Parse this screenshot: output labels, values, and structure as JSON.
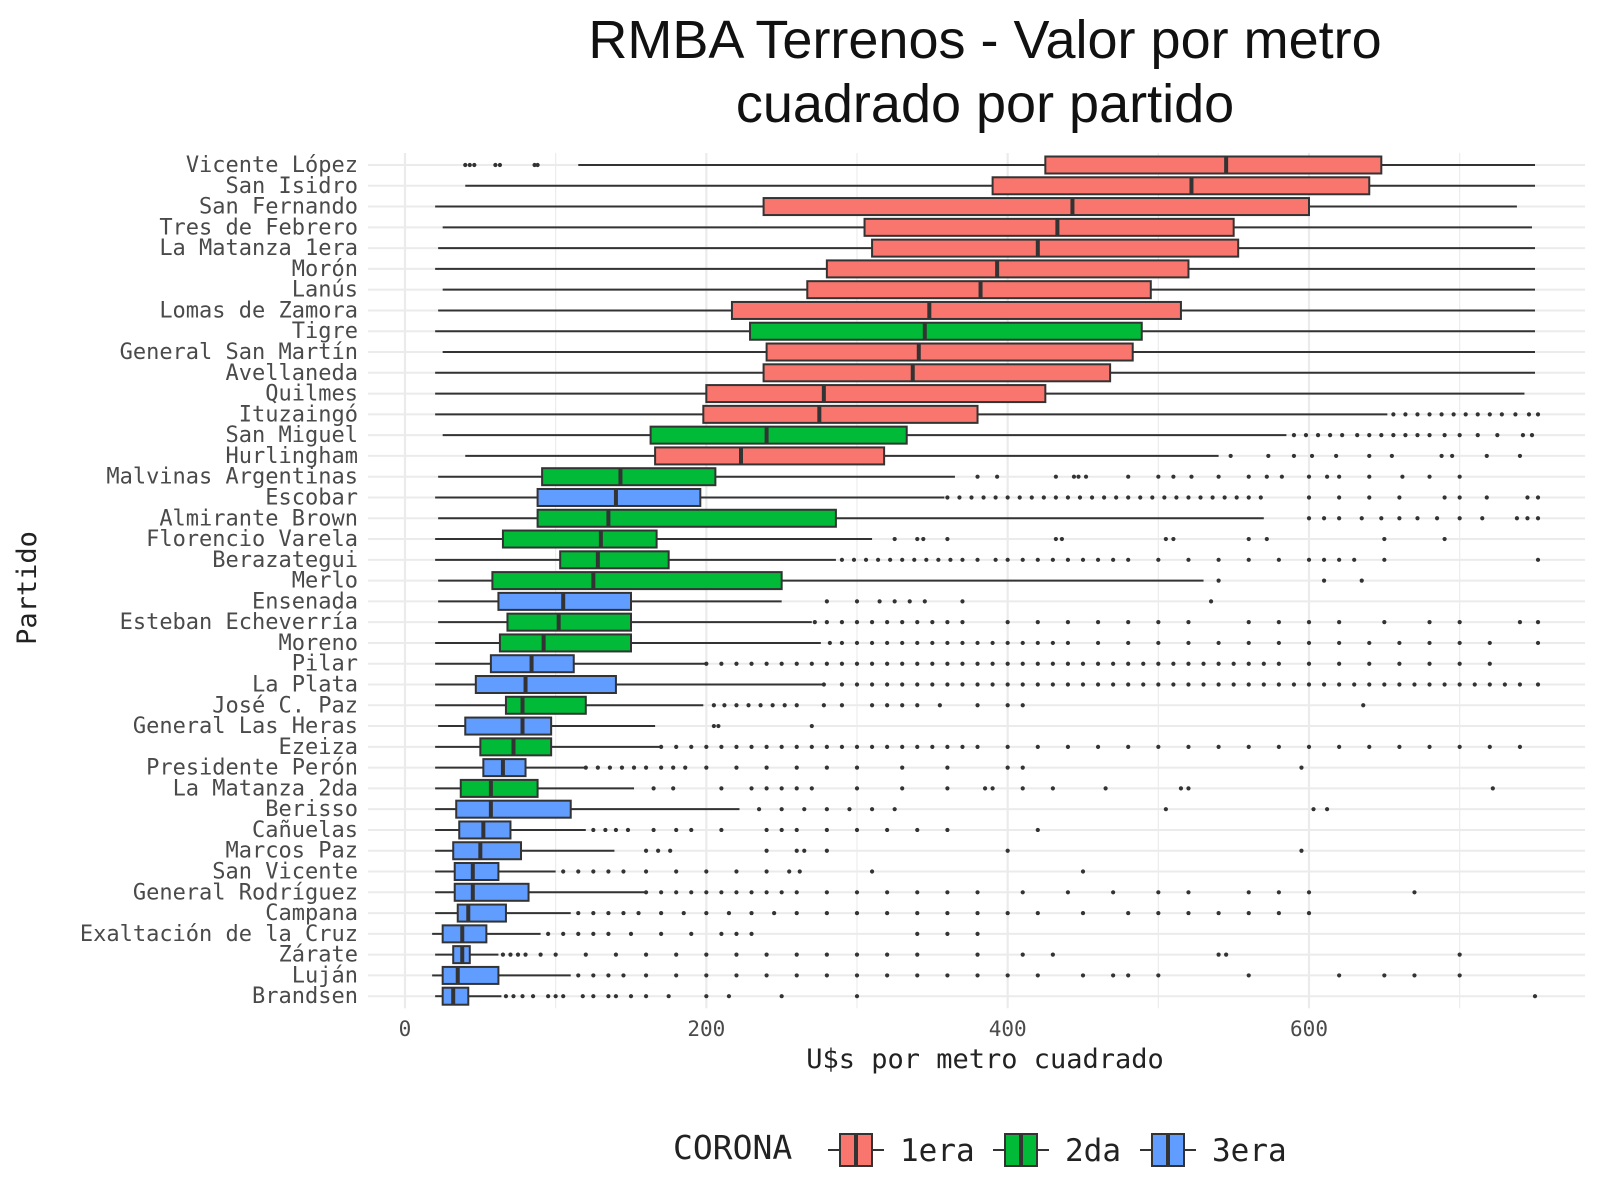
{
  "chart_data": {
    "type": "boxplot",
    "title_lines": [
      "RMBA Terrenos - Valor por metro",
      "cuadrado por partido"
    ],
    "xlabel": "U$s por metro cuadrado",
    "ylabel": "Partido",
    "xlim": [
      0,
      780
    ],
    "x_ticks": [
      0,
      200,
      400,
      600
    ],
    "grid": true,
    "orientation": "horizontal",
    "legend": {
      "title": "CORONA",
      "position": "bottom",
      "items": [
        {
          "label": "1era",
          "color": "#F8766D"
        },
        {
          "label": "2da",
          "color": "#00BA38"
        },
        {
          "label": "3era",
          "color": "#619CFF"
        }
      ]
    },
    "series": [
      {
        "name": "Vicente López",
        "corona": "1era",
        "whisker_low": 115,
        "q1": 425,
        "median": 545,
        "q3": 648,
        "whisker_high": 750,
        "outliers": [
          40,
          43,
          46,
          60,
          63,
          86,
          88
        ]
      },
      {
        "name": "San Isidro",
        "corona": "1era",
        "whisker_low": 40,
        "q1": 390,
        "median": 522,
        "q3": 640,
        "whisker_high": 750,
        "outliers": []
      },
      {
        "name": "San Fernando",
        "corona": "1era",
        "whisker_low": 20,
        "q1": 238,
        "median": 443,
        "q3": 600,
        "whisker_high": 738,
        "outliers": []
      },
      {
        "name": "Tres de Febrero",
        "corona": "1era",
        "whisker_low": 25,
        "q1": 305,
        "median": 433,
        "q3": 550,
        "whisker_high": 748,
        "outliers": []
      },
      {
        "name": "La Matanza 1era",
        "corona": "1era",
        "whisker_low": 22,
        "q1": 310,
        "median": 420,
        "q3": 553,
        "whisker_high": 750,
        "outliers": []
      },
      {
        "name": "Morón",
        "corona": "1era",
        "whisker_low": 20,
        "q1": 280,
        "median": 393,
        "q3": 520,
        "whisker_high": 750,
        "outliers": []
      },
      {
        "name": "Lanús",
        "corona": "1era",
        "whisker_low": 25,
        "q1": 267,
        "median": 382,
        "q3": 495,
        "whisker_high": 750,
        "outliers": []
      },
      {
        "name": "Lomas de Zamora",
        "corona": "1era",
        "whisker_low": 22,
        "q1": 217,
        "median": 348,
        "q3": 515,
        "whisker_high": 750,
        "outliers": []
      },
      {
        "name": "Tigre",
        "corona": "2da",
        "whisker_low": 20,
        "q1": 229,
        "median": 345,
        "q3": 489,
        "whisker_high": 750,
        "outliers": []
      },
      {
        "name": "General San Martín",
        "corona": "1era",
        "whisker_low": 25,
        "q1": 240,
        "median": 341,
        "q3": 483,
        "whisker_high": 750,
        "outliers": []
      },
      {
        "name": "Avellaneda",
        "corona": "1era",
        "whisker_low": 20,
        "q1": 238,
        "median": 337,
        "q3": 468,
        "whisker_high": 750,
        "outliers": []
      },
      {
        "name": "Quilmes",
        "corona": "1era",
        "whisker_low": 20,
        "q1": 200,
        "median": 278,
        "q3": 425,
        "whisker_high": 743,
        "outliers": []
      },
      {
        "name": "Ituzaingó",
        "corona": "1era",
        "whisker_low": 20,
        "q1": 198,
        "median": 275,
        "q3": 380,
        "whisker_high": 652,
        "outliers": [
          656,
          664,
          672,
          680,
          688,
          696,
          704,
          712,
          720,
          728,
          737,
          746,
          752
        ]
      },
      {
        "name": "San Miguel",
        "corona": "2da",
        "whisker_low": 25,
        "q1": 163,
        "median": 240,
        "q3": 333,
        "whisker_high": 585,
        "outliers": [
          590,
          598,
          606,
          614,
          622,
          632,
          640,
          648,
          656,
          664,
          672,
          680,
          690,
          700,
          712,
          725,
          742,
          748
        ]
      },
      {
        "name": "Hurlingham",
        "corona": "1era",
        "whisker_low": 40,
        "q1": 166,
        "median": 223,
        "q3": 318,
        "whisker_high": 540,
        "outliers": [
          548,
          573,
          590,
          602,
          618,
          640,
          655,
          688,
          695,
          718,
          740
        ]
      },
      {
        "name": "Malvinas Argentinas",
        "corona": "2da",
        "whisker_low": 22,
        "q1": 91,
        "median": 143,
        "q3": 206,
        "whisker_high": 365,
        "outliers": [
          380,
          393,
          432,
          444,
          447,
          452,
          480,
          500,
          510,
          522,
          540,
          560,
          572,
          582,
          600,
          612,
          620,
          640,
          662,
          680,
          700
        ]
      },
      {
        "name": "Escobar",
        "corona": "3era",
        "whisker_low": 20,
        "q1": 88,
        "median": 140,
        "q3": 196,
        "whisker_high": 358,
        "outliers": [
          360,
          368,
          376,
          384,
          392,
          400,
          408,
          416,
          424,
          432,
          440,
          448,
          456,
          464,
          472,
          480,
          488,
          496,
          504,
          512,
          520,
          528,
          536,
          544,
          552,
          560,
          568,
          600,
          620,
          640,
          660,
          690,
          700,
          718,
          745,
          752
        ]
      },
      {
        "name": "Almirante Brown",
        "corona": "2da",
        "whisker_low": 22,
        "q1": 88,
        "median": 135,
        "q3": 286,
        "whisker_high": 570,
        "outliers": [
          600,
          610,
          620,
          635,
          648,
          660,
          672,
          685,
          700,
          715,
          738,
          745,
          752
        ]
      },
      {
        "name": "Florencio Varela",
        "corona": "2da",
        "whisker_low": 20,
        "q1": 65,
        "median": 130,
        "q3": 167,
        "whisker_high": 310,
        "outliers": [
          325,
          340,
          344,
          360,
          432,
          436,
          505,
          510,
          560,
          572,
          650,
          690
        ]
      },
      {
        "name": "Berazategui",
        "corona": "2da",
        "whisker_low": 20,
        "q1": 103,
        "median": 128,
        "q3": 175,
        "whisker_high": 286,
        "outliers": [
          290,
          298,
          306,
          314,
          322,
          330,
          338,
          346,
          354,
          362,
          370,
          380,
          392,
          400,
          410,
          420,
          430,
          440,
          450,
          460,
          470,
          480,
          500,
          520,
          540,
          560,
          580,
          600,
          610,
          620,
          630,
          650,
          752
        ]
      },
      {
        "name": "Merlo",
        "corona": "2da",
        "whisker_low": 22,
        "q1": 58,
        "median": 125,
        "q3": 250,
        "whisker_high": 530,
        "outliers": [
          540,
          610,
          635
        ]
      },
      {
        "name": "Ensenada",
        "corona": "3era",
        "whisker_low": 22,
        "q1": 62,
        "median": 105,
        "q3": 150,
        "whisker_high": 250,
        "outliers": [
          280,
          300,
          315,
          325,
          335,
          345,
          370,
          535
        ]
      },
      {
        "name": "Esteban Echeverría",
        "corona": "2da",
        "whisker_low": 22,
        "q1": 68,
        "median": 102,
        "q3": 150,
        "whisker_high": 270,
        "outliers": [
          272,
          280,
          290,
          300,
          310,
          320,
          330,
          340,
          350,
          360,
          370,
          400,
          420,
          440,
          460,
          480,
          500,
          520,
          560,
          580,
          600,
          620,
          650,
          680,
          700,
          740,
          752
        ]
      },
      {
        "name": "Moreno",
        "corona": "2da",
        "whisker_low": 20,
        "q1": 63,
        "median": 92,
        "q3": 150,
        "whisker_high": 276,
        "outliers": [
          282,
          290,
          300,
          310,
          320,
          330,
          340,
          350,
          360,
          370,
          380,
          390,
          400,
          410,
          420,
          430,
          440,
          460,
          480,
          500,
          520,
          540,
          560,
          580,
          600,
          620,
          640,
          660,
          680,
          700,
          720,
          752
        ]
      },
      {
        "name": "Pilar",
        "corona": "3era",
        "whisker_low": 20,
        "q1": 57,
        "median": 84,
        "q3": 112,
        "whisker_high": 200,
        "outliers": [
          200,
          210,
          220,
          230,
          240,
          250,
          260,
          270,
          280,
          290,
          300,
          310,
          320,
          330,
          340,
          350,
          360,
          370,
          380,
          390,
          400,
          410,
          420,
          430,
          440,
          450,
          460,
          470,
          480,
          490,
          500,
          510,
          520,
          530,
          540,
          550,
          560,
          570,
          580,
          600,
          620,
          640,
          660,
          680,
          700,
          720
        ]
      },
      {
        "name": "La Plata",
        "corona": "3era",
        "whisker_low": 20,
        "q1": 47,
        "median": 80,
        "q3": 140,
        "whisker_high": 278,
        "outliers": [
          278,
          290,
          300,
          310,
          320,
          330,
          340,
          350,
          360,
          370,
          380,
          390,
          400,
          410,
          420,
          430,
          440,
          450,
          460,
          470,
          480,
          490,
          500,
          510,
          520,
          530,
          540,
          550,
          560,
          570,
          580,
          590,
          600,
          610,
          620,
          630,
          640,
          650,
          660,
          670,
          680,
          690,
          700,
          710,
          720,
          730,
          740,
          752
        ]
      },
      {
        "name": "José C. Paz",
        "corona": "2da",
        "whisker_low": 20,
        "q1": 67,
        "median": 78,
        "q3": 120,
        "whisker_high": 198,
        "outliers": [
          205,
          212,
          220,
          228,
          236,
          244,
          252,
          260,
          278,
          290,
          310,
          320,
          330,
          340,
          355,
          380,
          400,
          410,
          636
        ]
      },
      {
        "name": "General Las Heras",
        "corona": "3era",
        "whisker_low": 22,
        "q1": 40,
        "median": 78,
        "q3": 97,
        "whisker_high": 166,
        "outliers": [
          205,
          208,
          270
        ]
      },
      {
        "name": "Ezeiza",
        "corona": "2da",
        "whisker_low": 20,
        "q1": 50,
        "median": 72,
        "q3": 97,
        "whisker_high": 170,
        "outliers": [
          170,
          180,
          190,
          200,
          210,
          220,
          230,
          240,
          250,
          260,
          270,
          280,
          290,
          300,
          310,
          320,
          330,
          340,
          350,
          360,
          370,
          380,
          400,
          420,
          440,
          460,
          480,
          500,
          520,
          540,
          560,
          580,
          600,
          620,
          640,
          660,
          680,
          700,
          720,
          740
        ]
      },
      {
        "name": "Presidente Perón",
        "corona": "3era",
        "whisker_low": 20,
        "q1": 52,
        "median": 65,
        "q3": 80,
        "whisker_high": 120,
        "outliers": [
          120,
          128,
          136,
          144,
          152,
          160,
          170,
          178,
          186,
          200,
          220,
          240,
          260,
          280,
          300,
          330,
          360,
          400,
          410,
          595
        ]
      },
      {
        "name": "La Matanza 2da",
        "corona": "2da",
        "whisker_low": 20,
        "q1": 37,
        "median": 57,
        "q3": 88,
        "whisker_high": 152,
        "outliers": [
          165,
          178,
          210,
          230,
          240,
          250,
          260,
          270,
          300,
          330,
          360,
          385,
          390,
          410,
          430,
          465,
          515,
          520,
          722
        ]
      },
      {
        "name": "Berisso",
        "corona": "3era",
        "whisker_low": 20,
        "q1": 34,
        "median": 57,
        "q3": 110,
        "whisker_high": 222,
        "outliers": [
          235,
          250,
          265,
          280,
          295,
          310,
          325,
          505,
          603,
          612
        ]
      },
      {
        "name": "Cañuelas",
        "corona": "3era",
        "whisker_low": 20,
        "q1": 36,
        "median": 52,
        "q3": 70,
        "whisker_high": 120,
        "outliers": [
          125,
          133,
          140,
          148,
          165,
          180,
          190,
          210,
          240,
          250,
          260,
          280,
          300,
          320,
          340,
          360,
          420
        ]
      },
      {
        "name": "Marcos Paz",
        "corona": "3era",
        "whisker_low": 20,
        "q1": 32,
        "median": 50,
        "q3": 77,
        "whisker_high": 139,
        "outliers": [
          160,
          168,
          176,
          240,
          260,
          265,
          280,
          400,
          595
        ]
      },
      {
        "name": "San Vicente",
        "corona": "3era",
        "whisker_low": 20,
        "q1": 33,
        "median": 45,
        "q3": 62,
        "whisker_high": 100,
        "outliers": [
          105,
          115,
          125,
          135,
          145,
          160,
          180,
          200,
          220,
          240,
          255,
          262,
          310,
          450
        ]
      },
      {
        "name": "General Rodríguez",
        "corona": "3era",
        "whisker_low": 20,
        "q1": 33,
        "median": 45,
        "q3": 82,
        "whisker_high": 160,
        "outliers": [
          160,
          170,
          180,
          190,
          200,
          210,
          220,
          230,
          240,
          250,
          260,
          280,
          300,
          320,
          340,
          360,
          380,
          410,
          440,
          470,
          500,
          520,
          560,
          580,
          600,
          670
        ]
      },
      {
        "name": "Campana",
        "corona": "3era",
        "whisker_low": 20,
        "q1": 35,
        "median": 42,
        "q3": 67,
        "whisker_high": 110,
        "outliers": [
          115,
          125,
          135,
          145,
          155,
          170,
          185,
          200,
          215,
          230,
          245,
          260,
          280,
          300,
          320,
          340,
          360,
          380,
          400,
          420,
          450,
          480,
          500,
          520,
          540,
          560,
          580,
          600
        ]
      },
      {
        "name": "Exaltación de la Cruz",
        "corona": "3era",
        "whisker_low": 18,
        "q1": 25,
        "median": 38,
        "q3": 54,
        "whisker_high": 90,
        "outliers": [
          95,
          105,
          115,
          125,
          135,
          150,
          170,
          190,
          210,
          220,
          230,
          340,
          360,
          380
        ]
      },
      {
        "name": "Zárate",
        "corona": "3era",
        "whisker_low": 20,
        "q1": 32,
        "median": 38,
        "q3": 43,
        "whisker_high": 62,
        "outliers": [
          65,
          70,
          75,
          80,
          90,
          100,
          120,
          140,
          160,
          180,
          200,
          220,
          240,
          260,
          280,
          300,
          320,
          340,
          380,
          410,
          430,
          540,
          545,
          700
        ]
      },
      {
        "name": "Luján",
        "corona": "3era",
        "whisker_low": 18,
        "q1": 25,
        "median": 35,
        "q3": 62,
        "whisker_high": 110,
        "outliers": [
          115,
          125,
          135,
          145,
          160,
          180,
          200,
          220,
          240,
          260,
          280,
          300,
          320,
          340,
          360,
          380,
          400,
          420,
          450,
          470,
          480,
          500,
          560,
          620,
          650,
          670,
          700
        ]
      },
      {
        "name": "Brandsen",
        "corona": "3era",
        "whisker_low": 20,
        "q1": 25,
        "median": 32,
        "q3": 42,
        "whisker_high": 64,
        "outliers": [
          67,
          72,
          78,
          85,
          95,
          100,
          105,
          118,
          125,
          135,
          140,
          150,
          160,
          175,
          200,
          215,
          250,
          300,
          750
        ]
      }
    ]
  }
}
